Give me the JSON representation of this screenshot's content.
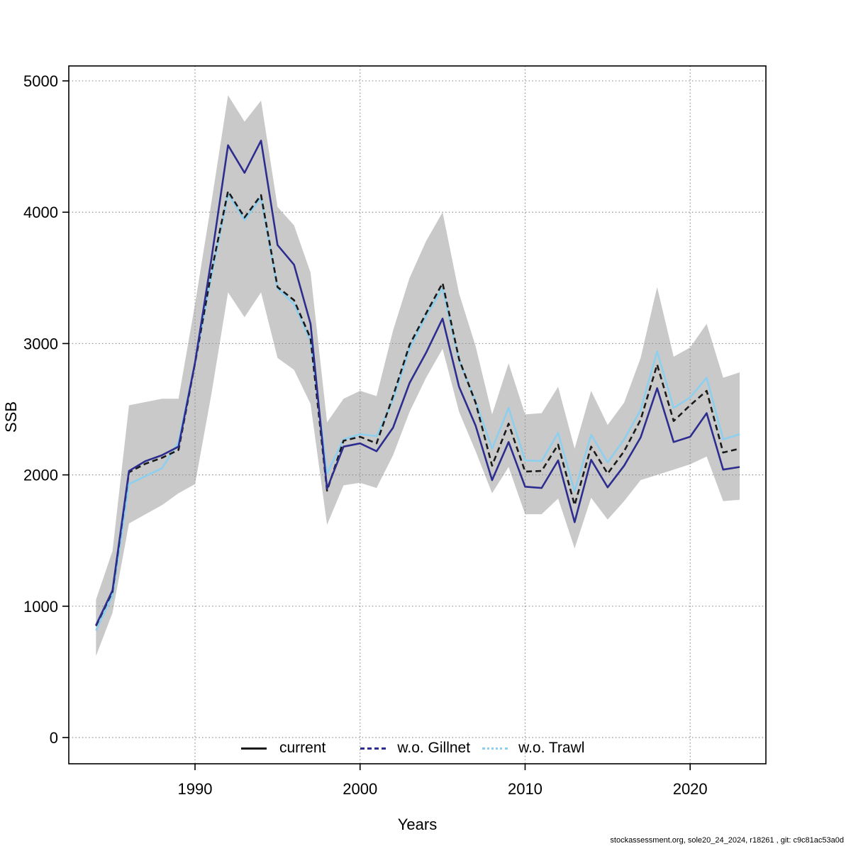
{
  "page": {
    "background": "#ffffff"
  },
  "footer": {
    "text": "stockassessment.org, sole20_24_2024, r18261 , git: c9c81ac53a0d"
  },
  "chart_data": {
    "type": "line",
    "title": "",
    "xlabel": "Years",
    "ylabel": "SSB",
    "ylim": [
      0,
      5000
    ],
    "xlim": [
      1984,
      2023
    ],
    "yticks": [
      0,
      1000,
      2000,
      3000,
      4000,
      5000
    ],
    "xticks": [
      1990,
      2000,
      2010,
      2020
    ],
    "grid": "dotted",
    "legend_position": "bottom-inside",
    "x": [
      1984,
      1985,
      1986,
      1987,
      1988,
      1989,
      1990,
      1991,
      1992,
      1993,
      1994,
      1995,
      1996,
      1997,
      1998,
      1999,
      2000,
      2001,
      2002,
      2003,
      2004,
      2005,
      2006,
      2007,
      2008,
      2009,
      2010,
      2011,
      2012,
      2013,
      2014,
      2015,
      2016,
      2017,
      2018,
      2019,
      2020,
      2021,
      2022,
      2023
    ],
    "series": [
      {
        "name": "current",
        "color": "#1a1a1a",
        "plot_style": "dashed",
        "legend_style": "solid",
        "values": [
          850,
          1110,
          2020,
          2085,
          2130,
          2190,
          2850,
          3550,
          4160,
          3960,
          4130,
          3430,
          3330,
          3040,
          1880,
          2260,
          2290,
          2240,
          2600,
          2990,
          3230,
          3460,
          2880,
          2550,
          2070,
          2390,
          2025,
          2030,
          2230,
          1770,
          2215,
          2010,
          2180,
          2420,
          2840,
          2410,
          2530,
          2640,
          2170,
          2200
        ]
      },
      {
        "name": "w.o. Gillnet",
        "color": "#2d2d8f",
        "plot_style": "solid",
        "legend_style": "dashed",
        "values": [
          855,
          1120,
          2030,
          2105,
          2150,
          2215,
          2855,
          3650,
          4510,
          4300,
          4545,
          3750,
          3600,
          3150,
          1895,
          2215,
          2240,
          2180,
          2360,
          2700,
          2930,
          3190,
          2670,
          2375,
          1960,
          2250,
          1910,
          1900,
          2110,
          1640,
          2115,
          1905,
          2070,
          2285,
          2660,
          2250,
          2290,
          2470,
          2040,
          2060
        ]
      },
      {
        "name": "w.o. Trawl",
        "color": "#8ccfef",
        "plot_style": "solid",
        "legend_style": "dotted",
        "values": [
          815,
          1080,
          1930,
          1990,
          2050,
          2250,
          2850,
          3520,
          4140,
          3940,
          4110,
          3420,
          3300,
          3020,
          2010,
          2270,
          2310,
          2295,
          2570,
          2960,
          3210,
          3420,
          2870,
          2560,
          2200,
          2510,
          2110,
          2105,
          2320,
          1875,
          2305,
          2095,
          2270,
          2495,
          2940,
          2510,
          2590,
          2740,
          2270,
          2310
        ]
      }
    ],
    "band": {
      "series": "current",
      "color": "#c9c9c9",
      "upper": [
        1050,
        1420,
        2530,
        2555,
        2580,
        2580,
        3300,
        4080,
        4890,
        4690,
        4850,
        4040,
        3900,
        3540,
        2400,
        2580,
        2640,
        2600,
        3100,
        3500,
        3780,
        4000,
        3380,
        2980,
        2460,
        2850,
        2460,
        2470,
        2670,
        2200,
        2640,
        2380,
        2550,
        2890,
        3430,
        2900,
        2970,
        3150,
        2740,
        2780
      ],
      "lower": [
        620,
        950,
        1630,
        1700,
        1770,
        1860,
        1930,
        2620,
        3390,
        3200,
        3390,
        2890,
        2800,
        2540,
        1620,
        1920,
        1940,
        1900,
        2150,
        2480,
        2740,
        2960,
        2480,
        2180,
        1860,
        2060,
        1700,
        1700,
        1820,
        1440,
        1825,
        1660,
        1800,
        1960,
        2000,
        2040,
        2080,
        2140,
        1800,
        1810
      ]
    },
    "style": {
      "grid_color": "#8f8f8f",
      "box_color": "#000000",
      "tick_color": "#000000",
      "text_color": "#000000"
    }
  }
}
